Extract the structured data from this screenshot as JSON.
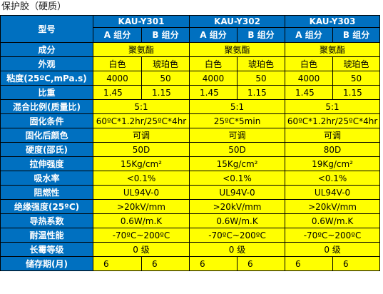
{
  "title": "保护胶（硬质）",
  "header": {
    "model_label": "型号",
    "models": [
      "KAU-Y301",
      "KAU-Y302",
      "KAU-Y303"
    ],
    "component_a": "A 组分",
    "component_b": "B 组分"
  },
  "rows": {
    "composition": {
      "label": "成分",
      "values": [
        "聚氨酯",
        "聚氨酯",
        "聚氨酯"
      ]
    },
    "appearance": {
      "label": "外观",
      "values": [
        [
          "白色",
          "琥珀色"
        ],
        [
          "白色",
          "琥珀色"
        ],
        [
          "白色",
          "琥珀色"
        ]
      ]
    },
    "viscosity": {
      "label": "粘度(25ºC,mPa.s)",
      "values": [
        [
          "4000",
          "50"
        ],
        [
          "4000",
          "50"
        ],
        [
          "4000",
          "50"
        ]
      ]
    },
    "specific_gravity": {
      "label": "比重",
      "values": [
        [
          "1.45",
          "1.15"
        ],
        [
          "1.45",
          "1.15"
        ],
        [
          "1.45",
          "1.15"
        ]
      ]
    },
    "mix_ratio": {
      "label": "混合比例(质量比)",
      "values": [
        "5:1",
        "5:1",
        "5:1"
      ]
    },
    "cure_condition": {
      "label": "固化条件",
      "values": [
        "60ºC*1.2hr/25ºC*4hr",
        "25ºC*5min",
        "60ºC*1.2hr/25ºC*4hr"
      ]
    },
    "cured_color": {
      "label": "固化后颜色",
      "values": [
        "可调",
        "可调",
        "可调"
      ]
    },
    "hardness": {
      "label": "硬度(邵氏)",
      "values": [
        "50D",
        "50D",
        "80D"
      ]
    },
    "tensile_strength": {
      "label": "拉伸强度",
      "values": [
        "15Kg/cm²",
        "15Kg/cm²",
        "19Kg/cm²"
      ]
    },
    "water_absorption": {
      "label": "吸水率",
      "values": [
        "<0.1%",
        "<0.1%",
        "<0.1%"
      ]
    },
    "flame_retardancy": {
      "label": "阻燃性",
      "values": [
        "UL94V-0",
        "UL94V-0",
        "UL94V-0"
      ]
    },
    "dielectric_strength": {
      "label": "绝缘强度(25ºC)",
      "values": [
        ">20kV/mm",
        ">20kV/mm",
        ">20kV/mm"
      ]
    },
    "thermal_conductivity": {
      "label": "导热系数",
      "values": [
        "0.6W/m.K",
        "0.6W/m.K",
        "0.6W/m.K"
      ]
    },
    "temperature_resistance": {
      "label": "耐温性能",
      "values": [
        "-70ºC~200ºC",
        "-70ºC~200ºC",
        "-70ºC~200ºC"
      ]
    },
    "mold_resistance": {
      "label": "长霉等级",
      "values": [
        "0 级",
        "0 级",
        "0 级"
      ]
    },
    "shelf_life": {
      "label": "储存期(月)",
      "values": [
        [
          "6",
          "6"
        ],
        [
          "6",
          "6"
        ],
        [
          "6",
          "6"
        ]
      ]
    }
  }
}
